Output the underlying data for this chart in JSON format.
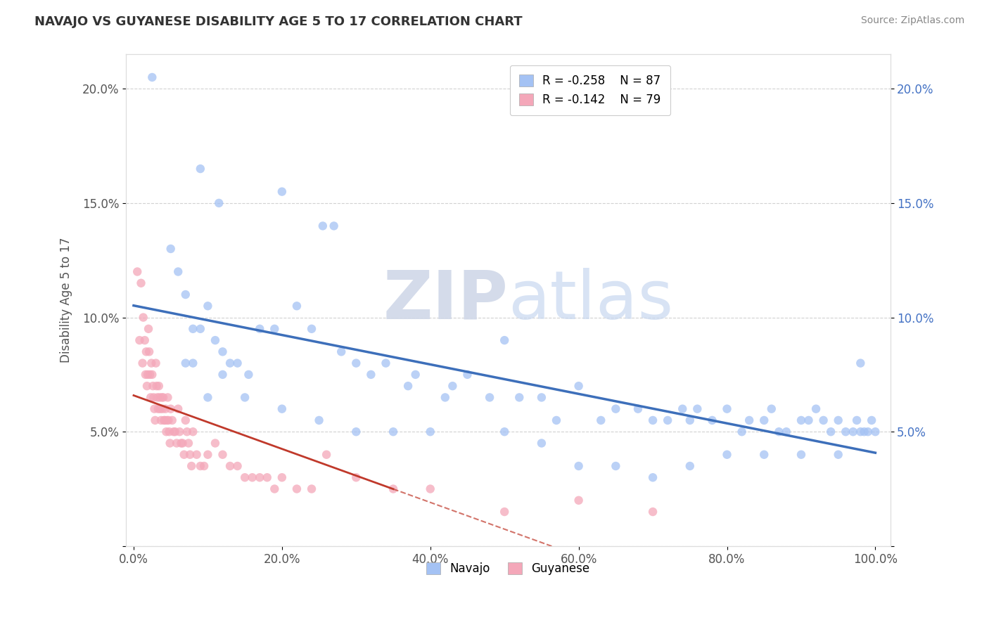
{
  "title": "NAVAJO VS GUYANESE DISABILITY AGE 5 TO 17 CORRELATION CHART",
  "source": "Source: ZipAtlas.com",
  "ylabel": "Disability Age 5 to 17",
  "xlim": [
    -0.01,
    1.02
  ],
  "ylim": [
    0,
    0.215
  ],
  "ytick_vals": [
    0.0,
    0.05,
    0.1,
    0.15,
    0.2
  ],
  "xtick_vals": [
    0.0,
    0.2,
    0.4,
    0.6,
    0.8,
    1.0
  ],
  "navajo_color": "#a4c2f4",
  "guyanese_color": "#f4a7b9",
  "navajo_line_color": "#3d6fba",
  "guyanese_line_color": "#c0392b",
  "legend_navajo_R": "-0.258",
  "legend_navajo_N": "87",
  "legend_guyanese_R": "-0.142",
  "legend_guyanese_N": "79",
  "watermark_zip": "ZIP",
  "watermark_atlas": "atlas",
  "background_color": "#ffffff",
  "navajo_x": [
    0.025,
    0.09,
    0.115,
    0.2,
    0.255,
    0.27,
    0.05,
    0.06,
    0.07,
    0.08,
    0.09,
    0.1,
    0.11,
    0.12,
    0.13,
    0.14,
    0.155,
    0.17,
    0.19,
    0.22,
    0.24,
    0.28,
    0.3,
    0.32,
    0.34,
    0.37,
    0.38,
    0.42,
    0.43,
    0.45,
    0.48,
    0.5,
    0.52,
    0.55,
    0.57,
    0.6,
    0.63,
    0.65,
    0.68,
    0.7,
    0.72,
    0.74,
    0.75,
    0.76,
    0.78,
    0.8,
    0.82,
    0.83,
    0.85,
    0.86,
    0.87,
    0.88,
    0.9,
    0.91,
    0.92,
    0.93,
    0.94,
    0.95,
    0.96,
    0.97,
    0.975,
    0.98,
    0.985,
    0.99,
    0.995,
    1.0,
    0.07,
    0.08,
    0.1,
    0.12,
    0.15,
    0.2,
    0.25,
    0.3,
    0.35,
    0.4,
    0.5,
    0.55,
    0.6,
    0.65,
    0.7,
    0.75,
    0.8,
    0.85,
    0.9,
    0.95,
    0.98
  ],
  "navajo_y": [
    0.205,
    0.165,
    0.15,
    0.155,
    0.14,
    0.14,
    0.13,
    0.12,
    0.11,
    0.095,
    0.095,
    0.105,
    0.09,
    0.085,
    0.08,
    0.08,
    0.075,
    0.095,
    0.095,
    0.105,
    0.095,
    0.085,
    0.08,
    0.075,
    0.08,
    0.07,
    0.075,
    0.065,
    0.07,
    0.075,
    0.065,
    0.09,
    0.065,
    0.065,
    0.055,
    0.07,
    0.055,
    0.06,
    0.06,
    0.055,
    0.055,
    0.06,
    0.055,
    0.06,
    0.055,
    0.06,
    0.05,
    0.055,
    0.055,
    0.06,
    0.05,
    0.05,
    0.055,
    0.055,
    0.06,
    0.055,
    0.05,
    0.055,
    0.05,
    0.05,
    0.055,
    0.05,
    0.05,
    0.05,
    0.055,
    0.05,
    0.08,
    0.08,
    0.065,
    0.075,
    0.065,
    0.06,
    0.055,
    0.05,
    0.05,
    0.05,
    0.05,
    0.045,
    0.035,
    0.035,
    0.03,
    0.035,
    0.04,
    0.04,
    0.04,
    0.04,
    0.08
  ],
  "guyanese_x": [
    0.005,
    0.008,
    0.01,
    0.012,
    0.013,
    0.015,
    0.016,
    0.017,
    0.018,
    0.019,
    0.02,
    0.021,
    0.022,
    0.023,
    0.024,
    0.025,
    0.026,
    0.027,
    0.028,
    0.029,
    0.03,
    0.031,
    0.032,
    0.033,
    0.034,
    0.035,
    0.036,
    0.037,
    0.038,
    0.039,
    0.04,
    0.041,
    0.042,
    0.043,
    0.044,
    0.045,
    0.046,
    0.047,
    0.048,
    0.049,
    0.05,
    0.052,
    0.054,
    0.056,
    0.058,
    0.06,
    0.062,
    0.064,
    0.066,
    0.068,
    0.07,
    0.072,
    0.074,
    0.076,
    0.078,
    0.08,
    0.085,
    0.09,
    0.095,
    0.1,
    0.11,
    0.12,
    0.13,
    0.14,
    0.15,
    0.16,
    0.17,
    0.18,
    0.19,
    0.2,
    0.22,
    0.24,
    0.26,
    0.3,
    0.35,
    0.4,
    0.5,
    0.6,
    0.7
  ],
  "guyanese_y": [
    0.12,
    0.09,
    0.115,
    0.08,
    0.1,
    0.09,
    0.075,
    0.085,
    0.07,
    0.075,
    0.095,
    0.085,
    0.075,
    0.065,
    0.08,
    0.075,
    0.07,
    0.065,
    0.06,
    0.055,
    0.08,
    0.07,
    0.065,
    0.06,
    0.07,
    0.065,
    0.06,
    0.055,
    0.065,
    0.06,
    0.065,
    0.055,
    0.055,
    0.06,
    0.05,
    0.055,
    0.065,
    0.055,
    0.05,
    0.045,
    0.06,
    0.055,
    0.05,
    0.05,
    0.045,
    0.06,
    0.05,
    0.045,
    0.045,
    0.04,
    0.055,
    0.05,
    0.045,
    0.04,
    0.035,
    0.05,
    0.04,
    0.035,
    0.035,
    0.04,
    0.045,
    0.04,
    0.035,
    0.035,
    0.03,
    0.03,
    0.03,
    0.03,
    0.025,
    0.03,
    0.025,
    0.025,
    0.04,
    0.03,
    0.025,
    0.025,
    0.015,
    0.02,
    0.015
  ]
}
